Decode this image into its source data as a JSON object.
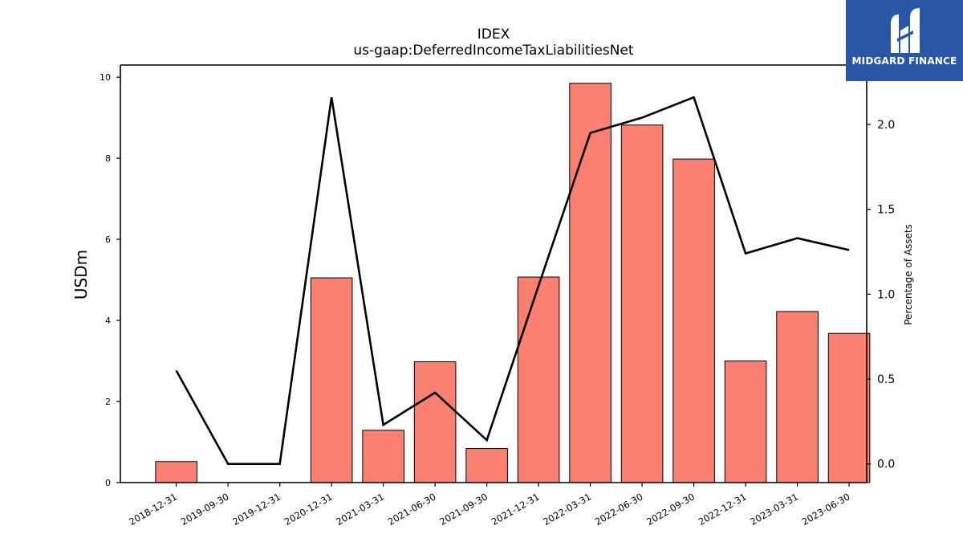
{
  "chart_data": {
    "type": "bar",
    "title": "IDEX",
    "subtitle": "us-gaap:DeferredIncomeTaxLiabilitiesNet",
    "categories": [
      "2018-12-31",
      "2019-09-30",
      "2019-12-31",
      "2020-12-31",
      "2021-03-31",
      "2021-06-30",
      "2021-09-30",
      "2021-12-31",
      "2022-03-31",
      "2022-06-30",
      "2022-09-30",
      "2022-12-31",
      "2023-03-31",
      "2023-06-30"
    ],
    "series": [
      {
        "values": [
          0.52,
          0,
          0,
          5.05,
          1.29,
          2.98,
          0.84,
          5.07,
          9.85,
          8.82,
          7.98,
          3.0,
          4.22,
          3.68
        ],
        "color": "#fa8072",
        "axis": "left"
      },
      {
        "type": "line",
        "values": [
          0.55,
          0.0,
          0.0,
          2.16,
          0.23,
          0.42,
          0.14,
          1.05,
          1.95,
          2.04,
          2.16,
          1.24,
          1.33,
          1.26
        ],
        "color": "#000000",
        "axis": "right"
      }
    ],
    "ylabel": "USDm",
    "y2label": "Percentage of Assets",
    "ylim": [
      0,
      10.3
    ],
    "y2lim": [
      -0.11,
      2.35
    ],
    "yticks": [
      0,
      2,
      4,
      6,
      8,
      10
    ],
    "y2ticks": [
      "0.0",
      "0.5",
      "1.0",
      "1.5",
      "2.0"
    ],
    "grid": false
  },
  "logo": {
    "text": "MIDGARD FINANCE",
    "color": "#2a56a8"
  }
}
